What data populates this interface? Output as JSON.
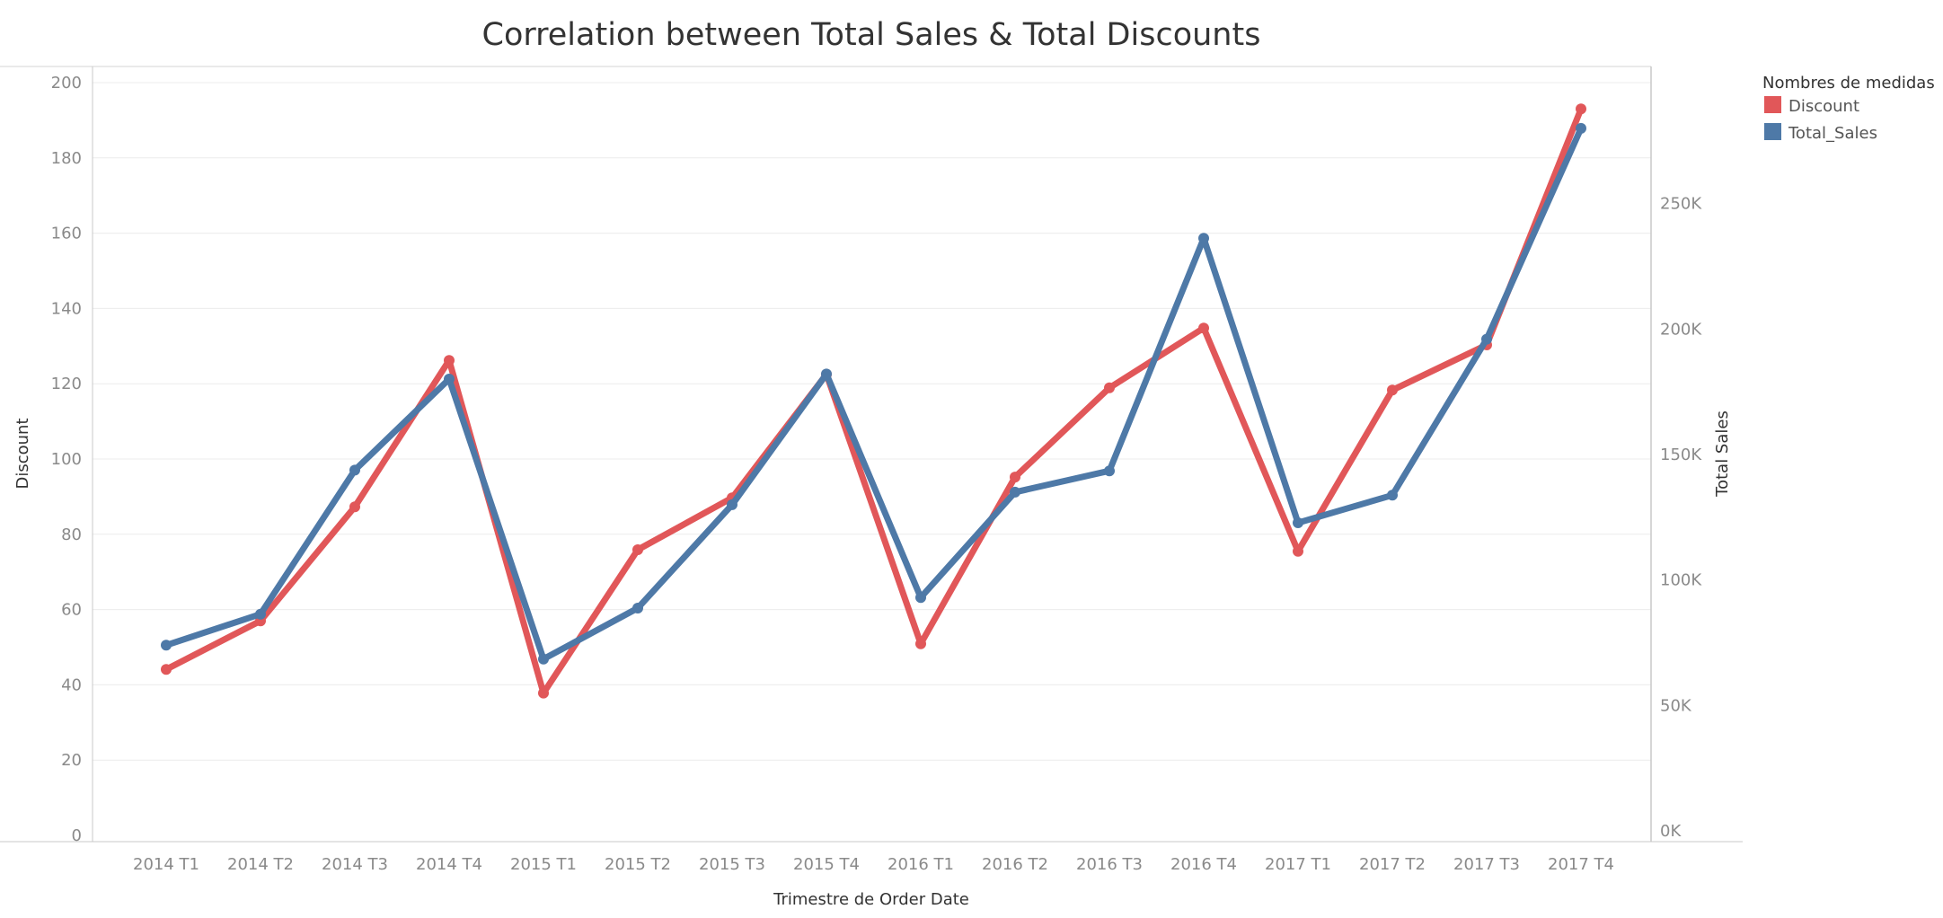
{
  "chart_data": {
    "type": "line",
    "title": "Correlation between Total Sales & Total Discounts",
    "xlabel": "Trimestre de Order Date",
    "ylabel_left": "Discount",
    "ylabel_right": "Total Sales",
    "categories": [
      "2014 T1",
      "2014 T2",
      "2014 T3",
      "2014 T4",
      "2015 T1",
      "2015 T2",
      "2015 T3",
      "2015 T4",
      "2016 T1",
      "2016 T2",
      "2016 T3",
      "2016 T4",
      "2017 T1",
      "2017 T2",
      "2017 T3",
      "2017 T4"
    ],
    "ylim_left": [
      0,
      200
    ],
    "yticks_left": [
      0,
      20,
      40,
      60,
      80,
      100,
      120,
      140,
      160,
      180,
      200
    ],
    "ylim_right": [
      0,
      290000
    ],
    "yticks_right": [
      0,
      50000,
      100000,
      150000,
      200000,
      250000
    ],
    "yticklabels_right": [
      "0K",
      "50K",
      "100K",
      "150K",
      "200K",
      "250K"
    ],
    "grid": true,
    "legend_title": "Nombres de medidas",
    "legend_placement": "right",
    "series": [
      {
        "name": "Discount",
        "axis": "left",
        "color": "#e15759",
        "values": [
          44.1,
          57.0,
          87.3,
          126.2,
          37.8,
          75.9,
          89.7,
          122.5,
          50.9,
          95.2,
          118.9,
          134.8,
          75.5,
          118.3,
          130.3,
          193.0
        ]
      },
      {
        "name": "Total_Sales",
        "axis": "right",
        "color": "#4e79a7",
        "values": [
          74000,
          86400,
          143800,
          180100,
          68500,
          88800,
          130000,
          182100,
          93000,
          135000,
          143500,
          236200,
          122800,
          133800,
          196000,
          280000
        ]
      }
    ]
  }
}
